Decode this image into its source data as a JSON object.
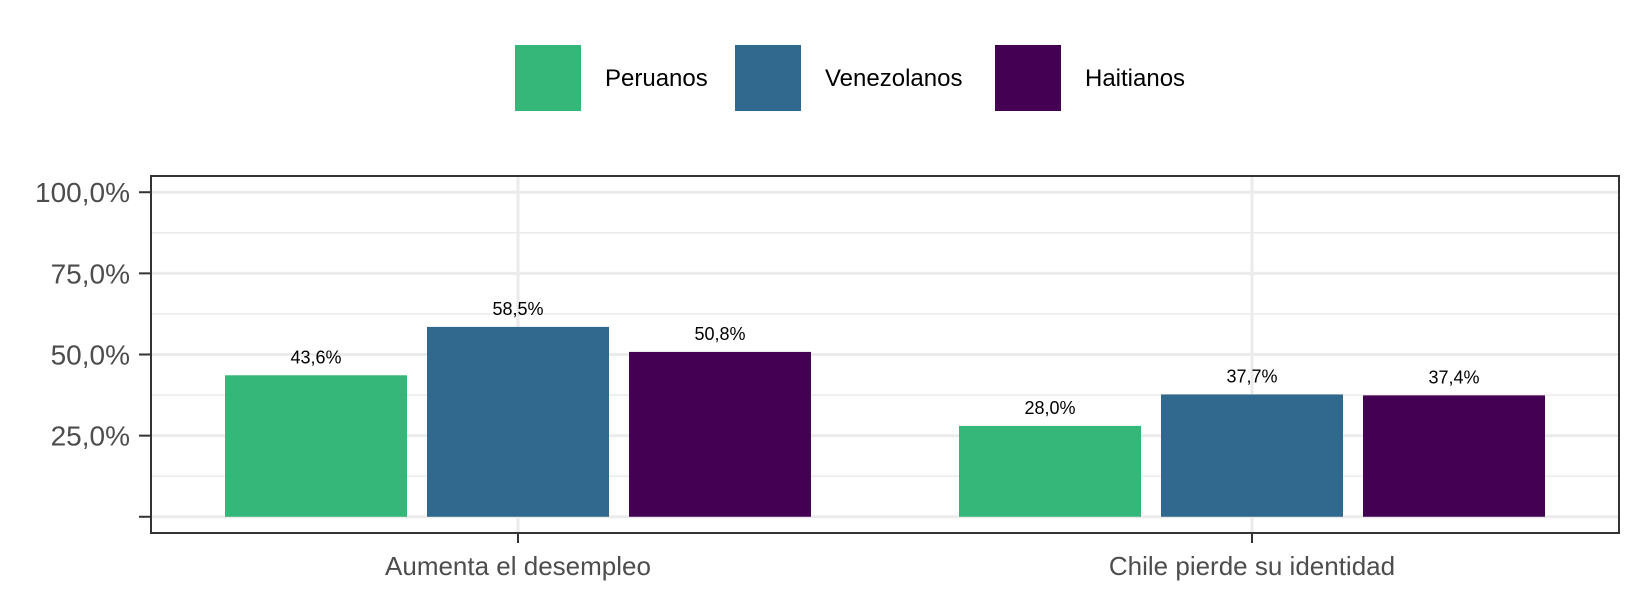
{
  "chart_data": {
    "type": "bar",
    "categories": [
      "Aumenta el desempleo",
      "Chile pierde su identidad"
    ],
    "series": [
      {
        "name": "Peruanos",
        "values": [
          43.6,
          28.0
        ],
        "labels": [
          "43,6%",
          "28,0%"
        ],
        "color": "#35b779"
      },
      {
        "name": "Venezolanos",
        "values": [
          58.5,
          37.7
        ],
        "labels": [
          "58,5%",
          "37,7%"
        ],
        "color": "#31688e"
      },
      {
        "name": "Haitianos",
        "values": [
          50.8,
          37.4
        ],
        "labels": [
          "50,8%",
          "37,4%"
        ],
        "color": "#440154"
      }
    ],
    "yticks": [
      {
        "value": 25,
        "label": "25,0%"
      },
      {
        "value": 50,
        "label": "50,0%"
      },
      {
        "value": 75,
        "label": "75,0%"
      },
      {
        "value": 100,
        "label": "100,0%"
      }
    ],
    "ylim": [
      -5,
      105
    ],
    "grid": true,
    "legend_position": "top",
    "title": "",
    "xlabel": "",
    "ylabel": ""
  }
}
